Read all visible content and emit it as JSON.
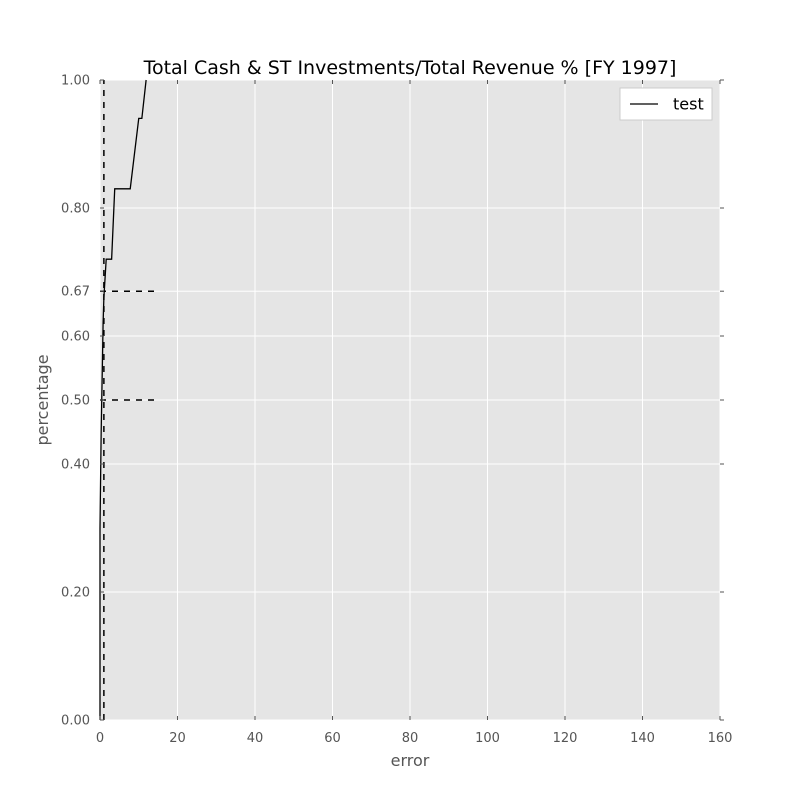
{
  "chart_data": {
    "type": "line",
    "title": "Total Cash & ST Investments/Total Revenue % [FY 1997]",
    "xlabel": "error",
    "ylabel": "percentage",
    "xlim": [
      0,
      160
    ],
    "ylim": [
      0.0,
      1.0
    ],
    "x_ticks": [
      0,
      20,
      40,
      60,
      80,
      100,
      120,
      140,
      160
    ],
    "x_tick_labels": [
      "0",
      "20",
      "40",
      "60",
      "80",
      "100",
      "120",
      "140",
      "160"
    ],
    "y_ticks": [
      0.0,
      0.2,
      0.4,
      0.5,
      0.6,
      0.67,
      0.8,
      1.0
    ],
    "y_tick_labels": [
      "0.00",
      "0.20",
      "0.40",
      "0.50",
      "0.60",
      "0.67",
      "0.80",
      "1.00"
    ],
    "grid": true,
    "legend_position": "top-right",
    "series": [
      {
        "name": "test",
        "color": "#000000",
        "style": "solid",
        "points": [
          [
            0.0,
            0.0
          ],
          [
            0.0,
            0.3
          ],
          [
            0.3,
            0.45
          ],
          [
            0.6,
            0.55
          ],
          [
            0.8,
            0.62
          ],
          [
            1.0,
            0.66
          ],
          [
            1.3,
            0.69
          ],
          [
            1.6,
            0.72
          ],
          [
            3.0,
            0.72
          ],
          [
            3.8,
            0.83
          ],
          [
            7.8,
            0.83
          ],
          [
            10.0,
            0.94
          ],
          [
            10.8,
            0.94
          ],
          [
            11.9,
            1.0
          ]
        ]
      }
    ],
    "reference_lines": [
      {
        "orientation": "vertical",
        "x": 1.0,
        "y_range": [
          0.0,
          1.0
        ],
        "style": "dashed",
        "color": "#000000"
      },
      {
        "orientation": "horizontal",
        "y": 0.67,
        "x_range": [
          0,
          15
        ],
        "style": "dashed",
        "color": "#000000"
      },
      {
        "orientation": "horizontal",
        "y": 0.5,
        "x_range": [
          0,
          15
        ],
        "style": "dashed",
        "color": "#000000"
      }
    ],
    "colors": {
      "plot_background": "#e5e5e5",
      "grid": "#ffffff",
      "tick_text": "#555555"
    }
  }
}
